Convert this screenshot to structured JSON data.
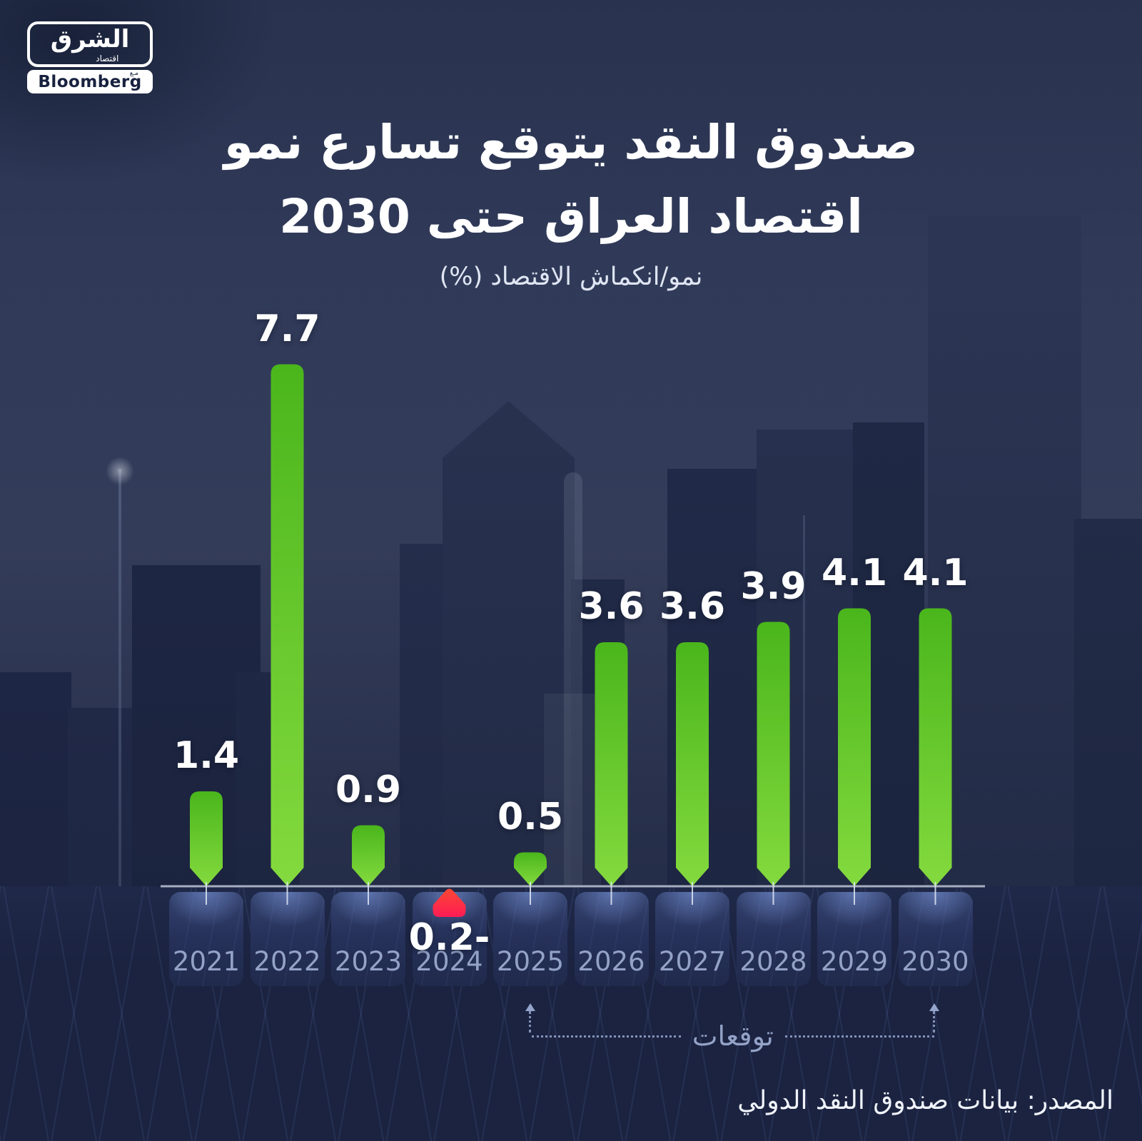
{
  "logo": {
    "arabic_main": "الشرق",
    "arabic_sub": "اقتصاد",
    "with_word": "مـع",
    "bloomberg": "Bloomberg"
  },
  "header": {
    "title_line1": "صندوق النقد يتوقع تسارع نمو",
    "title_line2": "اقتصاد العراق حتى 2030",
    "subtitle": "نمو/انكماش الاقتصاد (%)"
  },
  "chart_data": {
    "type": "bar",
    "title": "صندوق النقد يتوقع تسارع نمو اقتصاد العراق حتى 2030",
    "ylabel": "نمو/انكماش الاقتصاد (%)",
    "categories": [
      "2021",
      "2022",
      "2023",
      "2024",
      "2025",
      "2026",
      "2027",
      "2028",
      "2029",
      "2030"
    ],
    "values": [
      1.4,
      7.7,
      0.9,
      -0.2,
      0.5,
      3.6,
      3.6,
      3.9,
      4.1,
      4.1
    ],
    "value_labels": [
      "1.4",
      "7.7",
      "0.9",
      "0.2-",
      "0.5",
      "3.6",
      "3.6",
      "3.9",
      "4.1",
      "4.1"
    ],
    "forecast_label": "توقعات",
    "forecast_range": [
      "2025",
      "2030"
    ],
    "colors": {
      "bar_gradient_top": "#4ab61c",
      "bar_gradient_bottom": "#84da3e",
      "negative_gradient_top": "#fa4733",
      "negative_gradient_bottom": "#ff1c55",
      "baseline": "#a7aebf",
      "value_label": "#ffffff",
      "year_label": "#93a2c6",
      "background": "#2b3554"
    },
    "grid": false,
    "legend": false,
    "ylim": [
      -0.5,
      8
    ]
  },
  "footer": {
    "source": "المصدر: بيانات صندوق النقد الدولي"
  }
}
